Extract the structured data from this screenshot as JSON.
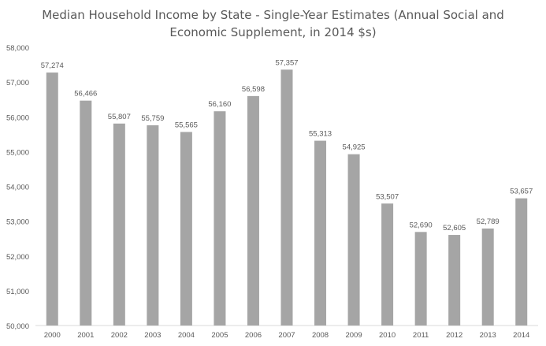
{
  "chart_data": {
    "type": "bar",
    "title_line1": "Median Household Income by State - Single-Year Estimates (Annual Social and",
    "title_line2": "Economic Supplement, in 2014 $s)",
    "categories": [
      "2000",
      "2001",
      "2002",
      "2003",
      "2004",
      "2005",
      "2006",
      "2007",
      "2008",
      "2009",
      "2010",
      "2011",
      "2012",
      "2013",
      "2014"
    ],
    "values": [
      57274,
      56466,
      55807,
      55759,
      55565,
      56160,
      56598,
      57357,
      55313,
      54925,
      53507,
      52690,
      52605,
      52789,
      53657
    ],
    "value_labels": [
      "57,274",
      "56,466",
      "55,807",
      "55,759",
      "55,565",
      "56,160",
      "56,598",
      "57,357",
      "55,313",
      "54,925",
      "53,507",
      "52,690",
      "52,605",
      "52,789",
      "53,657"
    ],
    "y_ticks": [
      50000,
      51000,
      52000,
      53000,
      54000,
      55000,
      56000,
      57000,
      58000
    ],
    "y_tick_labels": [
      "50,000",
      "51,000",
      "52,000",
      "53,000",
      "54,000",
      "55,000",
      "56,000",
      "57,000",
      "58,000"
    ],
    "ylim": [
      50000,
      58000
    ],
    "grid": false,
    "legend": "none",
    "colors": {
      "bar": "#a5a5a5",
      "axis": "#d9d9d9",
      "text": "#595959"
    }
  }
}
